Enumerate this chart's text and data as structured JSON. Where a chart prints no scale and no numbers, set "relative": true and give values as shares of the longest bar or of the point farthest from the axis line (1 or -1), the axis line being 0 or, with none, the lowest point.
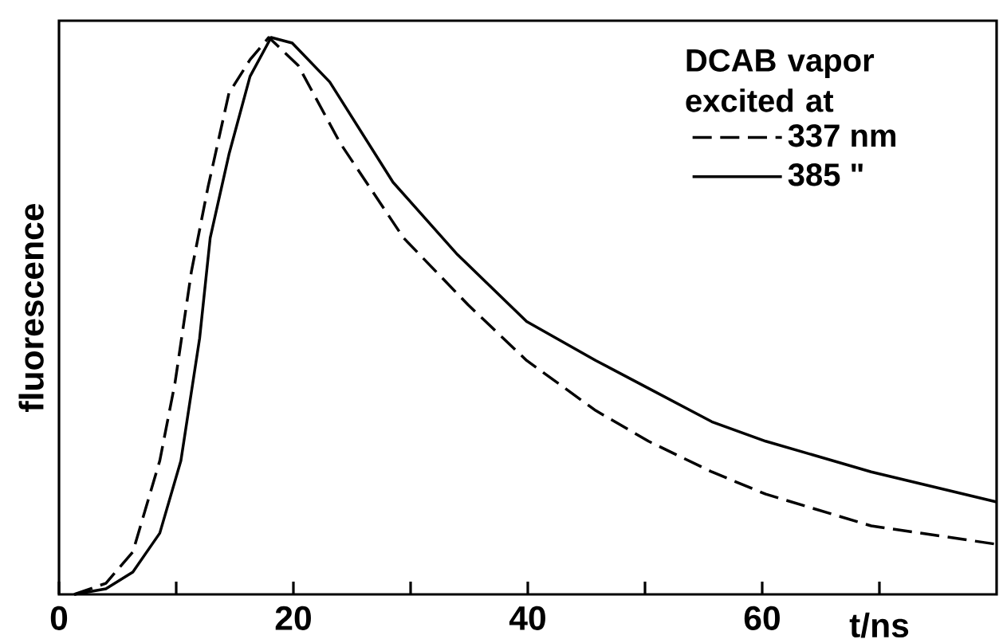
{
  "chart_data": {
    "type": "line",
    "xlabel": "t/ns",
    "ylabel": "fluorescence",
    "legend_title": "DCAB vapor excited at",
    "relative": true,
    "xlim": [
      0,
      80
    ],
    "xticks": [
      0,
      {
        "value": 10,
        "label": null
      },
      20,
      {
        "value": 30,
        "label": null
      },
      40,
      {
        "value": 50,
        "label": null
      },
      60,
      {
        "value": 70,
        "label": null
      }
    ],
    "legend": "top right",
    "series": [
      {
        "name": "337 nm",
        "color": "#000000",
        "line_style": "dashed",
        "x": [
          1.3,
          4.0,
          6.3,
          8.6,
          9.9,
          11.3,
          12.7,
          14.5,
          16.3,
          17.9,
          20.4,
          24.0,
          29.4,
          34.9,
          39.9,
          45.8,
          50.3,
          55.7,
          60.3,
          69.3,
          80
        ],
        "values": [
          0,
          0.02,
          0.076,
          0.24,
          0.38,
          0.58,
          0.73,
          0.9,
          0.96,
          1.0,
          0.95,
          0.81,
          0.64,
          0.52,
          0.42,
          0.33,
          0.275,
          0.22,
          0.18,
          0.123,
          0.09
        ]
      },
      {
        "name": "385 \"",
        "color": "#000000",
        "line_style": "solid",
        "x": [
          1.3,
          4.0,
          6.3,
          8.6,
          10.4,
          12.0,
          12.9,
          14.5,
          16.3,
          18.1,
          19.9,
          23.1,
          28.5,
          34.0,
          39.9,
          45.8,
          50.3,
          55.7,
          60.3,
          69.3,
          80
        ],
        "values": [
          0,
          0.01,
          0.04,
          0.11,
          0.24,
          0.46,
          0.64,
          0.79,
          0.93,
          1.0,
          0.99,
          0.92,
          0.74,
          0.61,
          0.49,
          0.42,
          0.37,
          0.31,
          0.275,
          0.22,
          0.166
        ]
      }
    ]
  }
}
